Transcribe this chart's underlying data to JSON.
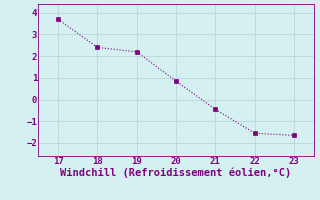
{
  "x": [
    17,
    18,
    19,
    20,
    21,
    22,
    23
  ],
  "y": [
    3.7,
    2.4,
    2.2,
    0.85,
    -0.45,
    -1.55,
    -1.65
  ],
  "line_color": "#800080",
  "marker_color": "#800080",
  "background_color": "#d4f0f0",
  "grid_color": "#b8d8d8",
  "axis_color": "#800080",
  "tick_color": "#800080",
  "xlabel": "Windchill (Refroidissement éolien,°C)",
  "xlabel_fontsize": 7.5,
  "xlim": [
    16.5,
    23.5
  ],
  "ylim": [
    -2.6,
    4.4
  ],
  "yticks": [
    -2,
    -1,
    0,
    1,
    2,
    3,
    4
  ],
  "xticks": [
    17,
    18,
    19,
    20,
    21,
    22,
    23
  ],
  "line_width": 0.8,
  "marker_size": 2.8
}
